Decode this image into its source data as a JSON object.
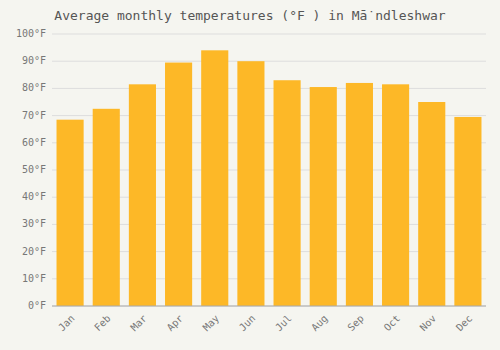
{
  "chart_data": {
    "type": "bar",
    "title": "Average monthly temperatures (°F ) in Mā̇ ndleshwar",
    "categories": [
      "Jan",
      "Feb",
      "Mar",
      "Apr",
      "May",
      "Jun",
      "Jul",
      "Aug",
      "Sep",
      "Oct",
      "Nov",
      "Dec"
    ],
    "values": [
      68.5,
      72.5,
      81.5,
      89.5,
      94.0,
      90.0,
      83.0,
      80.5,
      82.0,
      81.5,
      75.0,
      69.5
    ],
    "color": "#FDB827",
    "ylim": [
      0,
      100
    ],
    "yticks": [
      {
        "value": 0,
        "label": "0°F"
      },
      {
        "value": 10,
        "label": "10°F"
      },
      {
        "value": 20,
        "label": "20°F"
      },
      {
        "value": 30,
        "label": "30°F"
      },
      {
        "value": 40,
        "label": "40°F"
      },
      {
        "value": 50,
        "label": "50°F"
      },
      {
        "value": 60,
        "label": "60°F"
      },
      {
        "value": 70,
        "label": "70°F"
      },
      {
        "value": 80,
        "label": "80°F"
      },
      {
        "value": 90,
        "label": "90°F"
      },
      {
        "value": 100,
        "label": "100°F"
      }
    ],
    "grid": true
  }
}
